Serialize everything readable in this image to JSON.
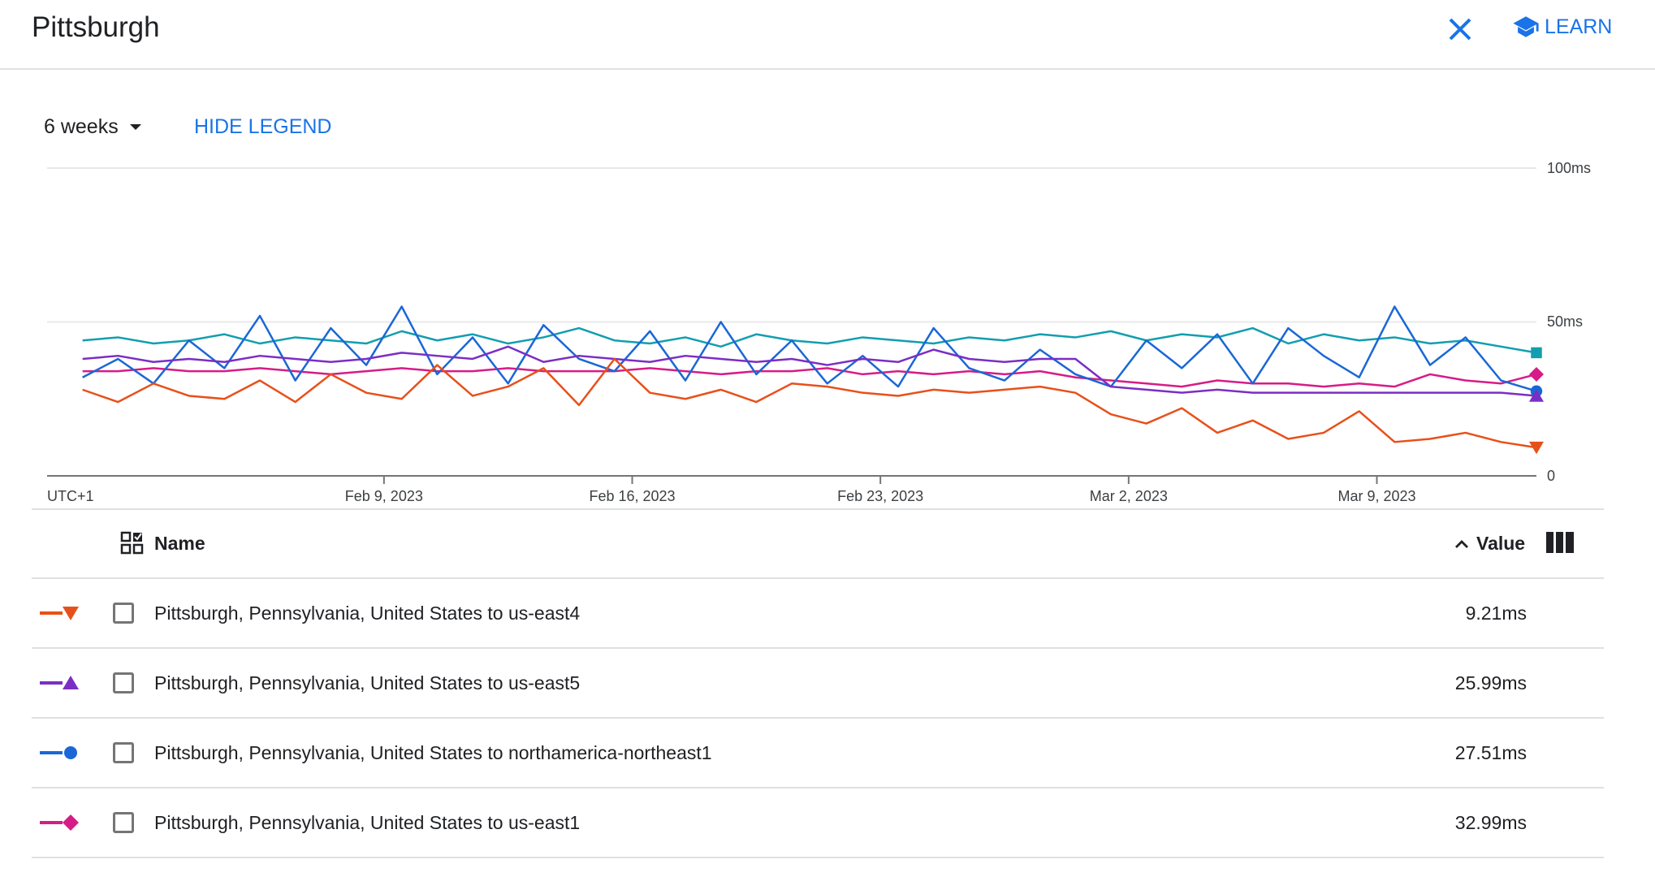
{
  "header": {
    "title": "Pittsburgh",
    "learn_label": "LEARN",
    "close_icon": "close-icon",
    "learn_icon": "school-icon"
  },
  "controls": {
    "range_selected": "6 weeks",
    "hide_legend_label": "HIDE LEGEND"
  },
  "table": {
    "name_header": "Name",
    "value_header": "Value",
    "rows": [
      {
        "name": "Pittsburgh, Pennsylvania, United States to us-east4",
        "value": "9.21ms",
        "color": "#e8501a",
        "marker": "triangle-down"
      },
      {
        "name": "Pittsburgh, Pennsylvania, United States to us-east5",
        "value": "25.99ms",
        "color": "#7b2ec4",
        "marker": "triangle-up"
      },
      {
        "name": "Pittsburgh, Pennsylvania, United States to northamerica-northeast1",
        "value": "27.51ms",
        "color": "#1a67d6",
        "marker": "circle"
      },
      {
        "name": "Pittsburgh, Pennsylvania, United States to us-east1",
        "value": "32.99ms",
        "color": "#d61c86",
        "marker": "diamond"
      }
    ]
  },
  "chart_data": {
    "type": "line",
    "timezone_label": "UTC+1",
    "x_tick_labels": [
      "Feb 9, 2023",
      "Feb 16, 2023",
      "Feb 23, 2023",
      "Mar 2, 2023",
      "Mar 9, 2023"
    ],
    "y_tick_labels": [
      "0",
      "50ms",
      "100ms"
    ],
    "ylim": [
      0,
      100
    ],
    "xlim": [
      "2023-01-30T12:00",
      "2023-03-13T12:00"
    ],
    "grid": true,
    "x": [
      "2023-01-31",
      "2023-02-01",
      "2023-02-02",
      "2023-02-03",
      "2023-02-04",
      "2023-02-05",
      "2023-02-06",
      "2023-02-07",
      "2023-02-08",
      "2023-02-09",
      "2023-02-10",
      "2023-02-11",
      "2023-02-12",
      "2023-02-13",
      "2023-02-14",
      "2023-02-15",
      "2023-02-16",
      "2023-02-17",
      "2023-02-18",
      "2023-02-19",
      "2023-02-20",
      "2023-02-21",
      "2023-02-22",
      "2023-02-23",
      "2023-02-24",
      "2023-02-25",
      "2023-02-26",
      "2023-02-27",
      "2023-02-28",
      "2023-03-01",
      "2023-03-02",
      "2023-03-03",
      "2023-03-04",
      "2023-03-05",
      "2023-03-06",
      "2023-03-07",
      "2023-03-08",
      "2023-03-09",
      "2023-03-10",
      "2023-03-11",
      "2023-03-12",
      "2023-03-13"
    ],
    "series": [
      {
        "name": "Pittsburgh, Pennsylvania, United States to us-east4",
        "color": "#e8501a",
        "marker": "triangle-down",
        "values": [
          28,
          24,
          30,
          26,
          25,
          31,
          24,
          33,
          27,
          25,
          36,
          26,
          29,
          35,
          23,
          38,
          27,
          25,
          28,
          24,
          30,
          29,
          27,
          26,
          28,
          27,
          28,
          29,
          27,
          20,
          17,
          22,
          14,
          18,
          12,
          14,
          21,
          11,
          12,
          14,
          11,
          9.21
        ]
      },
      {
        "name": "Pittsburgh, Pennsylvania, United States to us-east5",
        "color": "#7b2ec4",
        "marker": "triangle-up",
        "values": [
          38,
          39,
          37,
          38,
          37,
          39,
          38,
          37,
          38,
          40,
          39,
          38,
          42,
          37,
          39,
          38,
          37,
          39,
          38,
          37,
          38,
          36,
          38,
          37,
          41,
          38,
          37,
          38,
          38,
          29,
          28,
          27,
          28,
          27,
          27,
          27,
          27,
          27,
          27,
          27,
          27,
          25.99
        ]
      },
      {
        "name": "Pittsburgh, Pennsylvania, United States to northamerica-northeast1",
        "color": "#1a67d6",
        "marker": "circle",
        "values": [
          32,
          38,
          30,
          44,
          35,
          52,
          31,
          48,
          36,
          55,
          33,
          45,
          30,
          49,
          38,
          34,
          47,
          31,
          50,
          33,
          44,
          30,
          39,
          29,
          48,
          35,
          31,
          41,
          33,
          29,
          44,
          35,
          46,
          30,
          48,
          39,
          32,
          55,
          36,
          45,
          31,
          27.51
        ]
      },
      {
        "name": "Pittsburgh, Pennsylvania, United States to us-east1",
        "color": "#d61c86",
        "marker": "diamond",
        "values": [
          34,
          34,
          35,
          34,
          34,
          35,
          34,
          33,
          34,
          35,
          34,
          34,
          35,
          34,
          34,
          34,
          35,
          34,
          33,
          34,
          34,
          35,
          33,
          34,
          33,
          34,
          33,
          34,
          32,
          31,
          30,
          29,
          31,
          30,
          30,
          29,
          30,
          29,
          33,
          31,
          30,
          32.99
        ]
      },
      {
        "color": "#129eaf",
        "marker": "square",
        "values": [
          44,
          45,
          43,
          44,
          46,
          43,
          45,
          44,
          43,
          47,
          44,
          46,
          43,
          45,
          48,
          44,
          43,
          45,
          42,
          46,
          44,
          43,
          45,
          44,
          43,
          45,
          44,
          46,
          45,
          47,
          44,
          46,
          45,
          48,
          43,
          46,
          44,
          45,
          43,
          44,
          42,
          40
        ]
      }
    ]
  }
}
